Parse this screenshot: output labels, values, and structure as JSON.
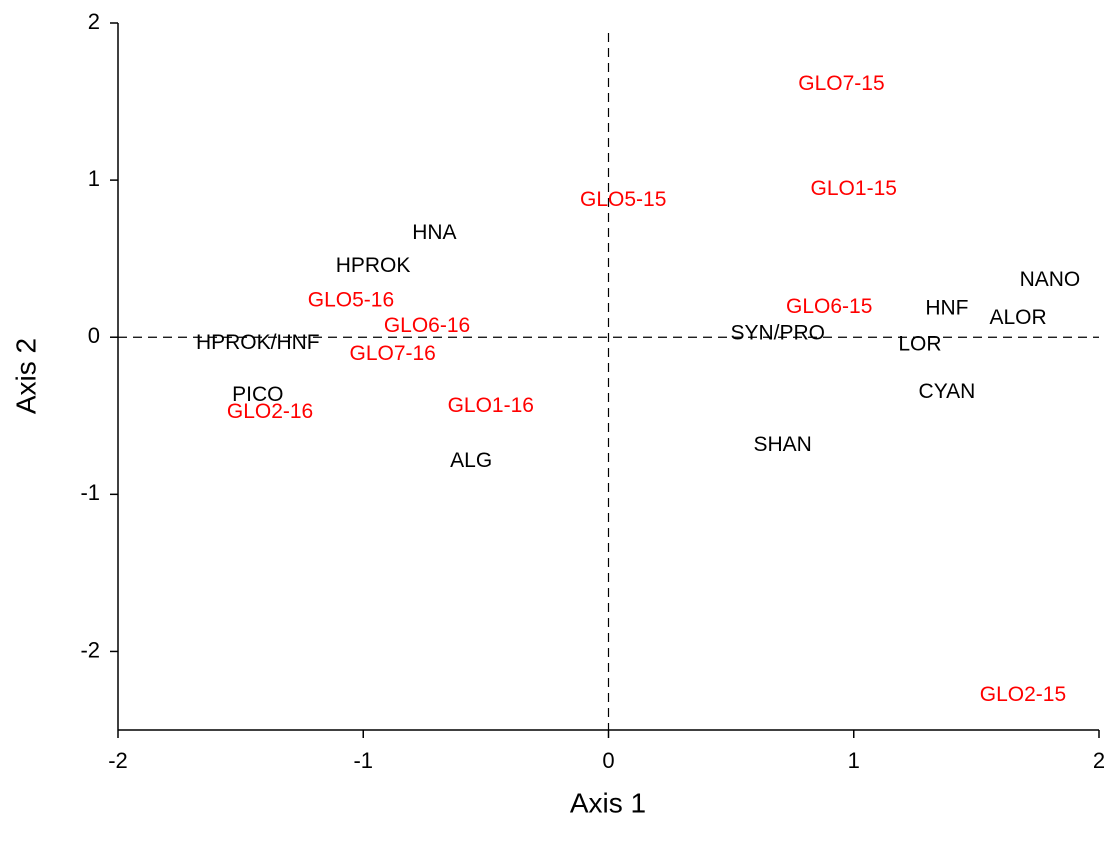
{
  "chart_data": {
    "type": "scatter",
    "x_label": "Axis 1",
    "y_label": "Axis 2",
    "xlim": [
      -2,
      2
    ],
    "ylim": [
      -2.5,
      2
    ],
    "xticks": [
      -2,
      -1,
      0,
      1,
      2
    ],
    "yticks": [
      -2,
      -1,
      0,
      1,
      2
    ],
    "reference_x": 0,
    "reference_y": 0,
    "series": [
      {
        "color": "#000000",
        "labels": [
          "HNA",
          "HPROK",
          "HPROK/HNF",
          "PICO",
          "ALG",
          "SYN/PRO",
          "SHAN",
          "HNF",
          "NANO",
          "ALOR",
          "LOR",
          "CYAN"
        ],
        "x": [
          -0.71,
          -0.96,
          -1.43,
          -1.43,
          -0.56,
          0.69,
          0.71,
          1.38,
          1.8,
          1.67,
          1.27,
          1.38
        ],
        "values": [
          0.66,
          0.45,
          -0.04,
          -0.37,
          -0.79,
          0.02,
          -0.69,
          0.18,
          0.36,
          0.12,
          -0.05,
          -0.35
        ]
      },
      {
        "color": "#ff0000",
        "labels": [
          "GLO7-15",
          "GLO1-15",
          "GLO5-15",
          "GLO6-15",
          "GLO5-16",
          "GLO6-16",
          "GLO7-16",
          "GLO1-16",
          "GLO2-16",
          "GLO2-15"
        ],
        "x": [
          0.95,
          1.0,
          0.06,
          0.9,
          -1.05,
          -0.74,
          -0.88,
          -0.48,
          -1.38,
          1.69
        ],
        "values": [
          1.61,
          0.94,
          0.87,
          0.19,
          0.23,
          0.07,
          -0.11,
          -0.44,
          -0.48,
          -2.28
        ]
      }
    ]
  }
}
